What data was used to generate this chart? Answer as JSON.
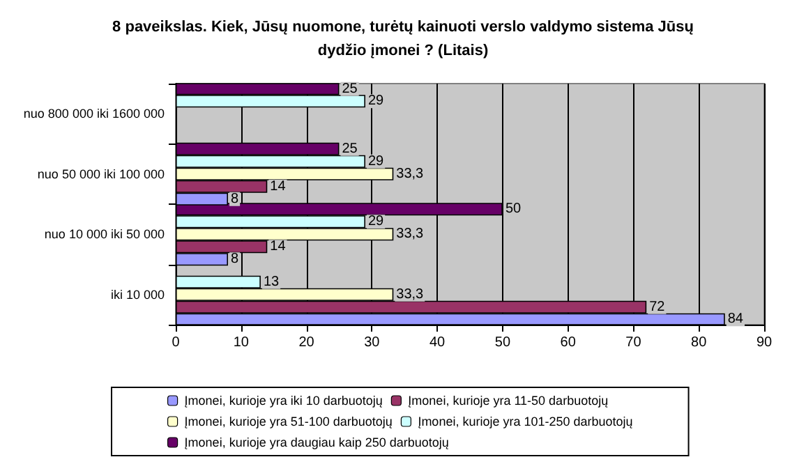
{
  "chart_data": {
    "type": "bar",
    "orientation": "horizontal",
    "title": "8 paveikslas. Kiek, Jūsų nuomone, turėtų kainuoti verslo valdymo sistema Jūsų\ndydžio įmonei ? (Litais)",
    "categories": [
      "nuo 800 000 iki 1600 000",
      "nuo 50 000 iki 100 000",
      "nuo 10 000 iki 50 000",
      "iki 10 000"
    ],
    "series": [
      {
        "name": "Įmonei, kurioje yra iki 10 darbuotojų",
        "color": "#9999ff",
        "values": [
          null,
          8,
          8,
          84
        ],
        "value_labels": [
          null,
          "8",
          "8",
          "84"
        ]
      },
      {
        "name": "Įmonei, kurioje yra 11-50 darbuotojų",
        "color": "#993366",
        "values": [
          null,
          14,
          14,
          72
        ],
        "value_labels": [
          null,
          "14",
          "14",
          "72"
        ]
      },
      {
        "name": "Įmonei, kurioje yra 51-100 darbuotojų",
        "color": "#ffffcc",
        "values": [
          null,
          33.3,
          33.3,
          33.3
        ],
        "value_labels": [
          null,
          "33,3",
          "33,3",
          "33,3"
        ]
      },
      {
        "name": "Įmonei, kurioje yra 101-250 darbuotojų",
        "color": "#ccffff",
        "values": [
          29,
          29,
          29,
          13
        ],
        "value_labels": [
          "29",
          "29",
          "29",
          "13"
        ]
      },
      {
        "name": "Įmonei, kurioje yra daugiau kaip 250 darbuotojų",
        "color": "#660066",
        "values": [
          25,
          25,
          50,
          null
        ],
        "value_labels": [
          "25",
          "25",
          "50",
          null
        ]
      }
    ],
    "xlim": [
      0,
      90
    ],
    "xticks": [
      0,
      10,
      20,
      30,
      40,
      50,
      60,
      70,
      80,
      90
    ],
    "grid": "x",
    "legend": "bottom"
  }
}
